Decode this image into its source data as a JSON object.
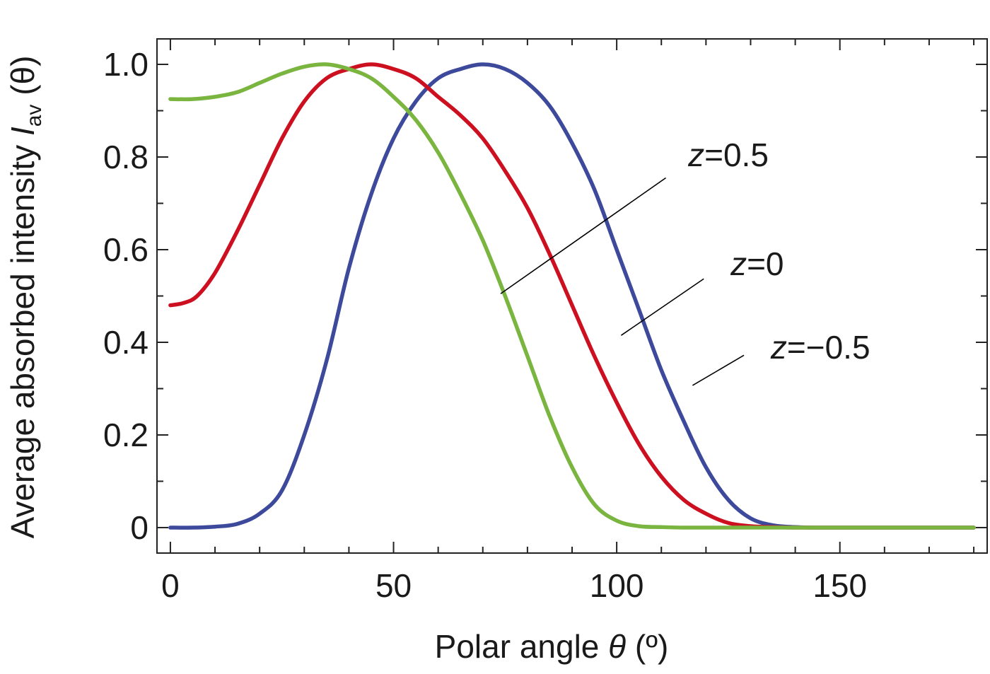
{
  "chart_data": {
    "type": "line",
    "xlabel_prefix": "Polar angle ",
    "xlabel_symbol": "θ",
    "xlabel_suffix": " (º)",
    "ylabel_prefix": "Average absorbed intensity ",
    "ylabel_symbol": "I",
    "ylabel_subscript": "av",
    "ylabel_suffix": " (θ)",
    "xlim": [
      -3,
      183
    ],
    "ylim": [
      -0.055,
      1.055
    ],
    "x_ticks": [
      0,
      50,
      100,
      150
    ],
    "x_tick_labels": [
      "0",
      "50",
      "100",
      "150"
    ],
    "y_ticks": [
      0,
      0.2,
      0.4,
      0.6,
      0.8,
      1.0
    ],
    "y_tick_labels": [
      "0",
      "0.2",
      "0.4",
      "0.6",
      "0.8",
      "1.0"
    ],
    "series": [
      {
        "color": "#3d4a9c",
        "x": [
          0,
          5,
          10,
          15,
          20,
          25,
          30,
          35,
          40,
          45,
          50,
          55,
          60,
          65,
          70,
          75,
          80,
          85,
          90,
          95,
          100,
          105,
          110,
          115,
          120,
          125,
          130,
          135,
          140,
          145,
          150,
          160,
          170,
          180
        ],
        "y": [
          0,
          0,
          0.002,
          0.008,
          0.03,
          0.08,
          0.2,
          0.36,
          0.56,
          0.72,
          0.84,
          0.92,
          0.97,
          0.99,
          1.0,
          0.99,
          0.96,
          0.91,
          0.83,
          0.73,
          0.6,
          0.47,
          0.34,
          0.23,
          0.13,
          0.06,
          0.02,
          0.005,
          0.001,
          0,
          0,
          0,
          0,
          0
        ]
      },
      {
        "color": "#cc1020",
        "x": [
          0,
          3,
          6,
          10,
          15,
          20,
          25,
          30,
          35,
          40,
          45,
          50,
          55,
          60,
          65,
          70,
          75,
          80,
          85,
          90,
          95,
          100,
          105,
          110,
          115,
          120,
          125,
          130,
          135,
          140,
          150,
          160,
          170,
          180
        ],
        "y": [
          0.48,
          0.485,
          0.5,
          0.55,
          0.64,
          0.74,
          0.84,
          0.92,
          0.97,
          0.99,
          1.0,
          0.99,
          0.97,
          0.93,
          0.89,
          0.84,
          0.77,
          0.69,
          0.59,
          0.48,
          0.37,
          0.27,
          0.18,
          0.11,
          0.06,
          0.03,
          0.01,
          0.003,
          0.001,
          0,
          0,
          0,
          0,
          0
        ]
      },
      {
        "color": "#7ab540",
        "x": [
          0,
          5,
          10,
          15,
          20,
          25,
          30,
          35,
          40,
          45,
          50,
          55,
          60,
          65,
          70,
          75,
          80,
          85,
          90,
          95,
          100,
          105,
          110,
          115,
          120,
          130,
          140,
          150,
          160,
          170,
          180
        ],
        "y": [
          0.925,
          0.925,
          0.93,
          0.94,
          0.96,
          0.98,
          0.995,
          1.0,
          0.99,
          0.97,
          0.93,
          0.88,
          0.81,
          0.72,
          0.62,
          0.5,
          0.37,
          0.24,
          0.13,
          0.05,
          0.015,
          0.003,
          0.001,
          0,
          0,
          0,
          0,
          0,
          0,
          0,
          0
        ]
      }
    ],
    "annotations": [
      {
        "text_var": "z",
        "text_rest": "=0.5",
        "label_x": 116,
        "label_y": 0.78,
        "from": [
          74,
          0.505
        ],
        "to": [
          111,
          0.755
        ]
      },
      {
        "text_var": "z",
        "text_rest": "=0",
        "label_x": 125.5,
        "label_y": 0.545,
        "from": [
          101,
          0.415
        ],
        "to": [
          119.5,
          0.537
        ]
      },
      {
        "text_var": "z",
        "text_rest": "=−0.5",
        "label_x": 134.5,
        "label_y": 0.365,
        "from": [
          117,
          0.307
        ],
        "to": [
          128.5,
          0.372
        ]
      }
    ],
    "grid": false,
    "legend": "none"
  }
}
